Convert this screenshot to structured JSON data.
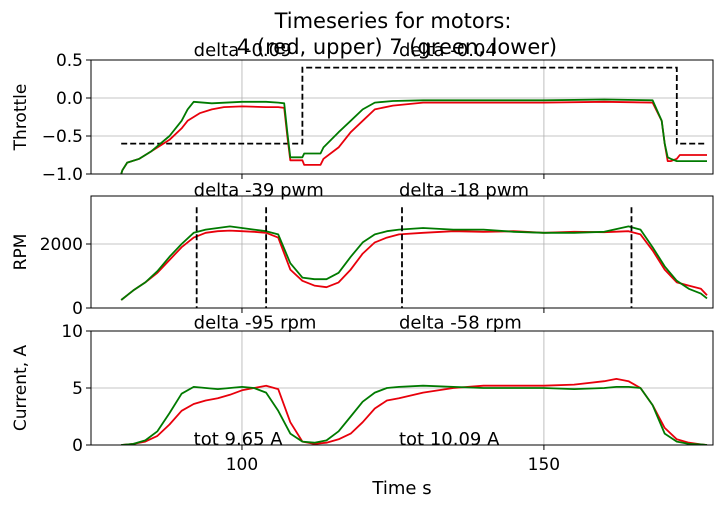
{
  "chart_data": {
    "type": "line",
    "title_line1": "Timeseries for motors:",
    "title_line2": "4 (red, upper) 7 (green, lower)",
    "xlabel": "Time s",
    "xlim": [
      75,
      178
    ],
    "xticks": [
      100,
      150
    ],
    "colors": {
      "red": "#e8000b",
      "green": "#007a00",
      "dash": "#000000",
      "grid": "#b0b0b0"
    },
    "panels": [
      {
        "id": "throttle",
        "ylabel": "Throttle",
        "ylim": [
          -1.0,
          0.5
        ],
        "yticks": [
          -1.0,
          -0.5,
          0.0,
          0.5
        ],
        "ytick_labels": [
          "−1.0",
          "−0.5",
          "0.0",
          "0.5"
        ],
        "annotations": [
          {
            "text": "delta -0.09",
            "x": 92,
            "y": 0.55
          },
          {
            "text": "delta -0.04",
            "x": 126,
            "y": 0.55
          }
        ],
        "dashed": {
          "x": [
            80,
            110,
            110,
            172,
            172,
            177
          ],
          "y": [
            -0.6,
            -0.6,
            0.4,
            0.4,
            -0.6,
            -0.6
          ]
        },
        "series": [
          {
            "color": "red",
            "x": [
              80,
              80.2,
              81,
              83,
              85,
              88,
              90,
              91,
              93,
              95,
              97,
              100,
              104,
              106,
              107,
              107.5,
              108,
              110,
              110.3,
              113,
              113.5,
              116,
              118,
              120,
              122,
              125,
              130,
              140,
              150,
              160,
              168,
              169.5,
              170,
              170.5,
              171,
              172,
              172.5,
              177
            ],
            "y": [
              -1.0,
              -0.95,
              -0.85,
              -0.8,
              -0.7,
              -0.55,
              -0.4,
              -0.3,
              -0.2,
              -0.15,
              -0.12,
              -0.11,
              -0.12,
              -0.12,
              -0.13,
              -0.5,
              -0.82,
              -0.82,
              -0.88,
              -0.88,
              -0.8,
              -0.65,
              -0.45,
              -0.3,
              -0.15,
              -0.1,
              -0.06,
              -0.06,
              -0.06,
              -0.05,
              -0.06,
              -0.3,
              -0.6,
              -0.83,
              -0.83,
              -0.8,
              -0.75,
              -0.75
            ]
          },
          {
            "color": "green",
            "x": [
              80,
              80.2,
              81,
              83,
              85,
              88,
              90,
              91,
              92,
              95,
              100,
              104,
              106,
              107,
              107.5,
              108,
              110,
              110.3,
              113,
              113.5,
              116,
              118,
              120,
              122,
              125,
              130,
              140,
              150,
              160,
              168,
              169.5,
              170,
              170.5,
              171,
              172,
              172.5,
              177
            ],
            "y": [
              -1.0,
              -0.95,
              -0.85,
              -0.8,
              -0.7,
              -0.5,
              -0.3,
              -0.15,
              -0.05,
              -0.07,
              -0.05,
              -0.05,
              -0.06,
              -0.07,
              -0.45,
              -0.78,
              -0.78,
              -0.73,
              -0.73,
              -0.65,
              -0.45,
              -0.3,
              -0.15,
              -0.06,
              -0.04,
              -0.03,
              -0.03,
              -0.03,
              -0.02,
              -0.03,
              -0.3,
              -0.6,
              -0.78,
              -0.8,
              -0.83,
              -0.83,
              -0.83
            ]
          }
        ]
      },
      {
        "id": "rpm",
        "ylabel": "RPM",
        "ylim": [
          0,
          3500
        ],
        "yticks": [
          0,
          2000
        ],
        "ytick_labels": [
          "0",
          "2000"
        ],
        "annotations": [
          {
            "text": "delta -39 pwm",
            "x": 92,
            "y": 3500
          },
          {
            "text": "delta -18 pwm",
            "x": 126,
            "y": 3500
          }
        ],
        "vlines": [
          92.5,
          104,
          126.5,
          164.5
        ],
        "vline_top": 3150,
        "series": [
          {
            "color": "red",
            "x": [
              80,
              82,
              84,
              86,
              88,
              90,
              92,
              94,
              96,
              98,
              100,
              102,
              104,
              106,
              108,
              110,
              112,
              114,
              116,
              118,
              120,
              122,
              124,
              126,
              130,
              135,
              140,
              145,
              150,
              155,
              160,
              164,
              166,
              168,
              170,
              172,
              174,
              176,
              177
            ],
            "y": [
              250,
              550,
              800,
              1100,
              1500,
              1900,
              2200,
              2350,
              2400,
              2420,
              2400,
              2380,
              2350,
              2200,
              1200,
              850,
              700,
              650,
              800,
              1200,
              1700,
              2050,
              2200,
              2300,
              2350,
              2400,
              2380,
              2400,
              2350,
              2380,
              2370,
              2400,
              2300,
              1800,
              1200,
              800,
              700,
              600,
              400
            ]
          },
          {
            "color": "green",
            "x": [
              80,
              82,
              84,
              86,
              88,
              90,
              92,
              94,
              96,
              98,
              100,
              102,
              104,
              106,
              108,
              110,
              112,
              114,
              116,
              118,
              120,
              122,
              124,
              126,
              130,
              135,
              140,
              145,
              150,
              155,
              160,
              164,
              166,
              168,
              170,
              172,
              174,
              176,
              177
            ],
            "y": [
              250,
              550,
              800,
              1150,
              1600,
              2000,
              2350,
              2450,
              2500,
              2550,
              2500,
              2450,
              2400,
              2300,
              1400,
              950,
              900,
              900,
              1100,
              1600,
              2050,
              2300,
              2400,
              2450,
              2500,
              2450,
              2450,
              2380,
              2350,
              2350,
              2380,
              2550,
              2450,
              1900,
              1300,
              850,
              600,
              450,
              300
            ]
          }
        ]
      },
      {
        "id": "current",
        "ylabel": "Current, A",
        "ylim": [
          0,
          10
        ],
        "yticks": [
          0,
          5,
          10
        ],
        "ytick_labels": [
          "0",
          "5",
          "10"
        ],
        "annotations": [
          {
            "text": "delta -95 rpm",
            "x": 92,
            "y": 10.2
          },
          {
            "text": "delta -58 rpm",
            "x": 126,
            "y": 10.2
          },
          {
            "text": "tot 9.65 A",
            "x": 92,
            "y": 0.0
          },
          {
            "text": "tot 10.09 A",
            "x": 126,
            "y": 0.0
          }
        ],
        "series": [
          {
            "color": "red",
            "x": [
              80,
              82,
              84,
              86,
              88,
              90,
              92,
              94,
              96,
              98,
              100,
              102,
              104,
              106,
              108,
              110,
              112,
              114,
              116,
              118,
              120,
              122,
              124,
              126,
              130,
              135,
              140,
              145,
              150,
              155,
              160,
              162,
              164,
              166,
              168,
              170,
              172,
              174,
              176,
              177
            ],
            "y": [
              0.0,
              0.1,
              0.3,
              0.8,
              1.8,
              3.0,
              3.6,
              3.9,
              4.1,
              4.4,
              4.8,
              5.0,
              5.2,
              4.9,
              2.0,
              0.3,
              0.1,
              0.2,
              0.5,
              1.0,
              2.0,
              3.2,
              3.9,
              4.1,
              4.6,
              5.0,
              5.2,
              5.2,
              5.2,
              5.3,
              5.6,
              5.8,
              5.6,
              5.0,
              3.5,
              1.5,
              0.5,
              0.2,
              0.05,
              0.0
            ]
          },
          {
            "color": "green",
            "x": [
              80,
              82,
              84,
              86,
              88,
              90,
              92,
              94,
              96,
              98,
              100,
              102,
              104,
              106,
              108,
              110,
              112,
              114,
              116,
              118,
              120,
              122,
              124,
              126,
              130,
              135,
              140,
              145,
              150,
              155,
              160,
              162,
              164,
              166,
              168,
              170,
              172,
              174,
              176,
              177
            ],
            "y": [
              0.0,
              0.1,
              0.4,
              1.2,
              2.8,
              4.5,
              5.1,
              5.0,
              4.9,
              5.0,
              5.1,
              5.0,
              4.6,
              3.0,
              1.0,
              0.3,
              0.2,
              0.4,
              1.2,
              2.5,
              3.8,
              4.6,
              5.0,
              5.1,
              5.2,
              5.1,
              5.0,
              5.0,
              5.0,
              4.9,
              5.0,
              5.1,
              5.1,
              5.0,
              3.5,
              1.0,
              0.3,
              0.1,
              0.05,
              0.0
            ]
          }
        ]
      }
    ]
  }
}
